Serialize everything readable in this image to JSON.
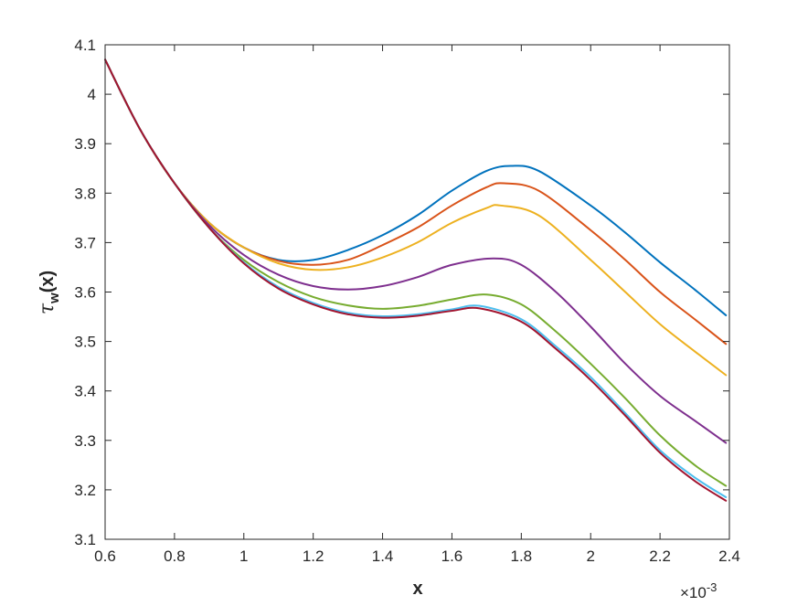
{
  "chart_data": {
    "type": "line",
    "title": "",
    "xlabel": "x",
    "ylabel_main": "τ",
    "ylabel_sub": "w",
    "ylabel_suffix": "(x)",
    "x_exponent_base": "×10",
    "x_exponent_power": "-3",
    "xlim": [
      0.6,
      2.4
    ],
    "ylim": [
      3.1,
      4.1
    ],
    "x_ticks": [
      0.6,
      0.8,
      1,
      1.2,
      1.4,
      1.6,
      1.8,
      2,
      2.2,
      2.4
    ],
    "x_tick_labels": [
      "0.6",
      "0.8",
      "1",
      "1.2",
      "1.4",
      "1.6",
      "1.8",
      "2",
      "2.2",
      "2.4"
    ],
    "y_ticks": [
      3.1,
      3.2,
      3.3,
      3.4,
      3.5,
      3.6,
      3.7,
      3.8,
      3.9,
      4.0,
      4.1
    ],
    "y_tick_labels": [
      "3.1",
      "3.2",
      "3.3",
      "3.4",
      "3.5",
      "3.6",
      "3.7",
      "3.8",
      "3.9",
      "4",
      "4.1"
    ],
    "grid": false,
    "legend": "none",
    "series": [
      {
        "color": "#0072BD",
        "x": [
          0.6,
          0.7,
          0.8,
          0.9,
          1.0,
          1.1,
          1.2,
          1.3,
          1.4,
          1.5,
          1.6,
          1.7,
          1.77,
          1.85,
          2.0,
          2.1,
          2.2,
          2.3,
          2.39
        ],
        "y": [
          4.07,
          3.93,
          3.82,
          3.74,
          3.69,
          3.665,
          3.665,
          3.685,
          3.715,
          3.755,
          3.805,
          3.845,
          3.855,
          3.845,
          3.775,
          3.72,
          3.66,
          3.605,
          3.553
        ]
      },
      {
        "color": "#D95319",
        "x": [
          0.6,
          0.7,
          0.8,
          0.9,
          1.0,
          1.1,
          1.2,
          1.3,
          1.4,
          1.5,
          1.6,
          1.7,
          1.75,
          1.85,
          2.0,
          2.1,
          2.2,
          2.3,
          2.39
        ],
        "y": [
          4.07,
          3.93,
          3.82,
          3.74,
          3.69,
          3.663,
          3.655,
          3.665,
          3.695,
          3.73,
          3.775,
          3.812,
          3.82,
          3.805,
          3.725,
          3.665,
          3.6,
          3.545,
          3.495
        ]
      },
      {
        "color": "#EDB120",
        "x": [
          0.6,
          0.7,
          0.8,
          0.9,
          1.0,
          1.1,
          1.2,
          1.3,
          1.4,
          1.5,
          1.6,
          1.7,
          1.74,
          1.85,
          2.0,
          2.1,
          2.2,
          2.3,
          2.39
        ],
        "y": [
          4.07,
          3.93,
          3.82,
          3.74,
          3.69,
          3.658,
          3.645,
          3.65,
          3.67,
          3.7,
          3.74,
          3.77,
          3.775,
          3.755,
          3.665,
          3.6,
          3.535,
          3.48,
          3.432
        ]
      },
      {
        "color": "#7E2F8E",
        "x": [
          0.6,
          0.7,
          0.8,
          0.9,
          1.0,
          1.1,
          1.2,
          1.3,
          1.4,
          1.5,
          1.6,
          1.72,
          1.8,
          1.9,
          2.0,
          2.1,
          2.2,
          2.3,
          2.39
        ],
        "y": [
          4.07,
          3.93,
          3.82,
          3.735,
          3.675,
          3.635,
          3.612,
          3.605,
          3.612,
          3.63,
          3.655,
          3.668,
          3.655,
          3.6,
          3.53,
          3.455,
          3.39,
          3.34,
          3.295
        ]
      },
      {
        "color": "#77AC30",
        "x": [
          0.6,
          0.7,
          0.8,
          0.9,
          1.0,
          1.1,
          1.2,
          1.3,
          1.4,
          1.5,
          1.6,
          1.7,
          1.8,
          1.9,
          2.0,
          2.1,
          2.2,
          2.3,
          2.39
        ],
        "y": [
          4.07,
          3.93,
          3.82,
          3.73,
          3.665,
          3.62,
          3.59,
          3.573,
          3.566,
          3.572,
          3.585,
          3.595,
          3.575,
          3.52,
          3.455,
          3.385,
          3.31,
          3.25,
          3.208
        ]
      },
      {
        "color": "#4DBEEE",
        "x": [
          0.6,
          0.7,
          0.8,
          0.9,
          1.0,
          1.1,
          1.2,
          1.3,
          1.4,
          1.5,
          1.6,
          1.68,
          1.8,
          1.9,
          2.0,
          2.1,
          2.2,
          2.3,
          2.39
        ],
        "y": [
          4.07,
          3.93,
          3.82,
          3.73,
          3.66,
          3.61,
          3.578,
          3.558,
          3.551,
          3.555,
          3.565,
          3.572,
          3.545,
          3.49,
          3.428,
          3.355,
          3.28,
          3.225,
          3.185
        ]
      },
      {
        "color": "#A2142F",
        "x": [
          0.6,
          0.7,
          0.8,
          0.9,
          1.0,
          1.1,
          1.2,
          1.3,
          1.4,
          1.5,
          1.6,
          1.68,
          1.8,
          1.9,
          2.0,
          2.1,
          2.2,
          2.3,
          2.39
        ],
        "y": [
          4.07,
          3.93,
          3.82,
          3.73,
          3.658,
          3.607,
          3.575,
          3.555,
          3.548,
          3.552,
          3.562,
          3.567,
          3.54,
          3.485,
          3.422,
          3.35,
          3.275,
          3.218,
          3.178
        ]
      }
    ]
  }
}
